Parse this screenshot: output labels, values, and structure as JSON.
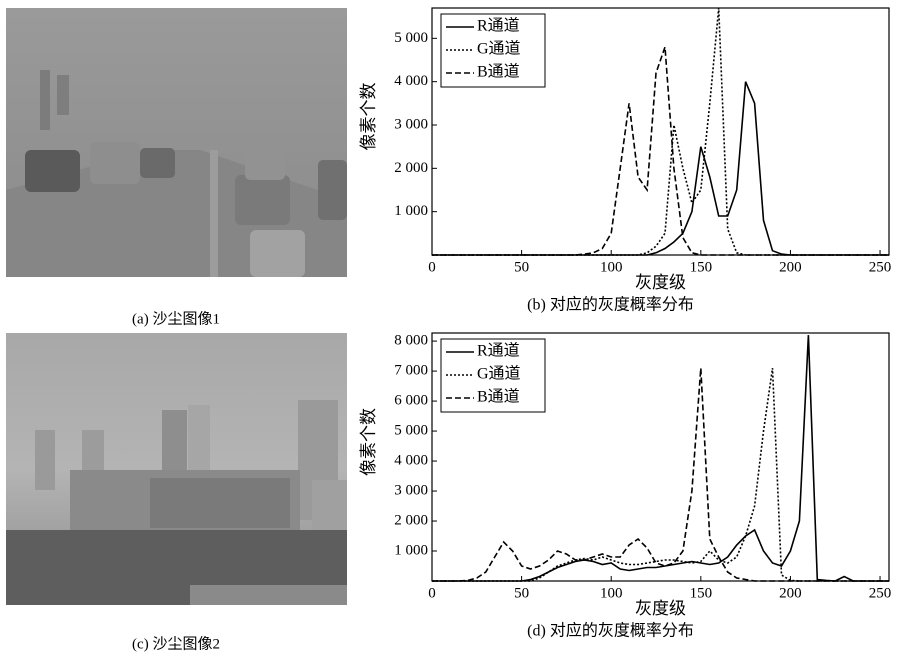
{
  "images": [
    {
      "caption": "(a) 沙尘图像1"
    },
    {
      "caption": "(c) 沙尘图像2"
    }
  ],
  "chart_data": [
    {
      "type": "line",
      "title": "(b) 对应的灰度概率分布",
      "x_label": "灰度级",
      "y_label": "像素个数",
      "x": [
        0,
        5,
        10,
        15,
        20,
        25,
        30,
        35,
        40,
        45,
        50,
        55,
        60,
        65,
        70,
        75,
        80,
        85,
        90,
        95,
        100,
        105,
        110,
        115,
        120,
        125,
        130,
        135,
        140,
        145,
        150,
        155,
        160,
        165,
        170,
        175,
        180,
        185,
        190,
        195,
        200,
        205,
        210,
        215,
        220,
        225,
        230,
        235,
        240,
        245,
        250,
        255
      ],
      "xlim": [
        0,
        255
      ],
      "xticks": [
        0,
        50,
        100,
        150,
        200,
        250
      ],
      "ylim": [
        0,
        5700
      ],
      "yticks": [
        {
          "value": 1000,
          "label": "1 000"
        },
        {
          "value": 2000,
          "label": "2 000"
        },
        {
          "value": 3000,
          "label": "3 000"
        },
        {
          "value": 4000,
          "label": "4 000"
        },
        {
          "value": 5000,
          "label": "5 000"
        }
      ],
      "legend": "upper left",
      "series": [
        {
          "name": "R通道",
          "color": "#000000",
          "style": "solid",
          "values": [
            0,
            0,
            0,
            0,
            0,
            0,
            0,
            0,
            0,
            0,
            0,
            0,
            0,
            0,
            0,
            0,
            0,
            0,
            0,
            0,
            0,
            0,
            0,
            0,
            0,
            50,
            150,
            300,
            500,
            1000,
            2500,
            1800,
            900,
            900,
            1500,
            4000,
            3500,
            800,
            100,
            20,
            0,
            0,
            0,
            0,
            0,
            0,
            0,
            0,
            0,
            0,
            0,
            0
          ]
        },
        {
          "name": "G通道",
          "color": "#000000",
          "style": "dotted",
          "values": [
            0,
            0,
            0,
            0,
            0,
            0,
            0,
            0,
            0,
            0,
            0,
            0,
            0,
            0,
            0,
            0,
            0,
            0,
            0,
            0,
            0,
            0,
            0,
            0,
            50,
            200,
            500,
            3000,
            2000,
            1200,
            1500,
            3500,
            5700,
            600,
            50,
            0,
            0,
            0,
            0,
            0,
            0,
            0,
            0,
            0,
            0,
            0,
            0,
            0,
            0,
            0,
            0,
            0
          ]
        },
        {
          "name": "B通道",
          "color": "#000000",
          "style": "dashed",
          "values": [
            0,
            0,
            0,
            0,
            0,
            0,
            0,
            0,
            0,
            0,
            0,
            0,
            0,
            0,
            0,
            0,
            0,
            20,
            50,
            150,
            500,
            2000,
            3500,
            1800,
            1500,
            4200,
            4800,
            2000,
            400,
            50,
            0,
            0,
            0,
            0,
            0,
            0,
            0,
            0,
            0,
            0,
            0,
            0,
            0,
            0,
            0,
            0,
            0,
            0,
            0,
            0,
            0,
            0
          ]
        }
      ]
    },
    {
      "type": "line",
      "title": "(d) 对应的灰度概率分布",
      "x_label": "灰度级",
      "y_label": "像素个数",
      "x": [
        0,
        5,
        10,
        15,
        20,
        25,
        30,
        35,
        40,
        45,
        50,
        55,
        60,
        65,
        70,
        75,
        80,
        85,
        90,
        95,
        100,
        105,
        110,
        115,
        120,
        125,
        130,
        135,
        140,
        145,
        150,
        155,
        160,
        165,
        170,
        175,
        180,
        185,
        190,
        195,
        200,
        205,
        210,
        215,
        220,
        225,
        230,
        235,
        240,
        245,
        250,
        255
      ],
      "xlim": [
        0,
        255
      ],
      "xticks": [
        0,
        50,
        100,
        150,
        200,
        250
      ],
      "ylim": [
        0,
        8270
      ],
      "yticks": [
        {
          "value": 1000,
          "label": "1 000"
        },
        {
          "value": 2000,
          "label": "2 000"
        },
        {
          "value": 3000,
          "label": "3 000"
        },
        {
          "value": 4000,
          "label": "4 000"
        },
        {
          "value": 5000,
          "label": "5 000"
        },
        {
          "value": 6000,
          "label": "6 000"
        },
        {
          "value": 7000,
          "label": "7 000"
        },
        {
          "value": 8000,
          "label": "8 000"
        }
      ],
      "legend": "upper left",
      "series": [
        {
          "name": "R通道",
          "color": "#000000",
          "style": "solid",
          "values": [
            0,
            0,
            0,
            0,
            0,
            0,
            0,
            0,
            0,
            0,
            0,
            50,
            150,
            300,
            450,
            550,
            650,
            700,
            650,
            550,
            600,
            400,
            350,
            400,
            450,
            450,
            500,
            550,
            600,
            650,
            600,
            550,
            600,
            800,
            1200,
            1500,
            1700,
            1000,
            600,
            500,
            1000,
            2000,
            8200,
            50,
            20,
            0,
            150,
            0,
            0,
            0,
            0,
            0
          ]
        },
        {
          "name": "G通道",
          "color": "#000000",
          "style": "dotted",
          "values": [
            0,
            0,
            0,
            0,
            0,
            0,
            0,
            0,
            0,
            0,
            0,
            0,
            100,
            300,
            500,
            600,
            700,
            750,
            700,
            800,
            700,
            600,
            550,
            550,
            600,
            650,
            700,
            700,
            650,
            600,
            650,
            1000,
            700,
            600,
            800,
            1500,
            2500,
            5000,
            7100,
            200,
            20,
            0,
            0,
            0,
            0,
            0,
            0,
            0,
            0,
            0,
            0,
            0
          ]
        },
        {
          "name": "B通道",
          "color": "#000000",
          "style": "dashed",
          "values": [
            0,
            0,
            0,
            0,
            20,
            100,
            300,
            800,
            1300,
            1000,
            500,
            400,
            500,
            700,
            1000,
            900,
            700,
            700,
            800,
            900,
            800,
            800,
            1200,
            1400,
            1100,
            600,
            500,
            600,
            1000,
            3000,
            7100,
            1400,
            800,
            300,
            100,
            50,
            0,
            0,
            0,
            0,
            0,
            0,
            0,
            0,
            0,
            0,
            0,
            0,
            0,
            0,
            0,
            0
          ]
        }
      ]
    }
  ]
}
